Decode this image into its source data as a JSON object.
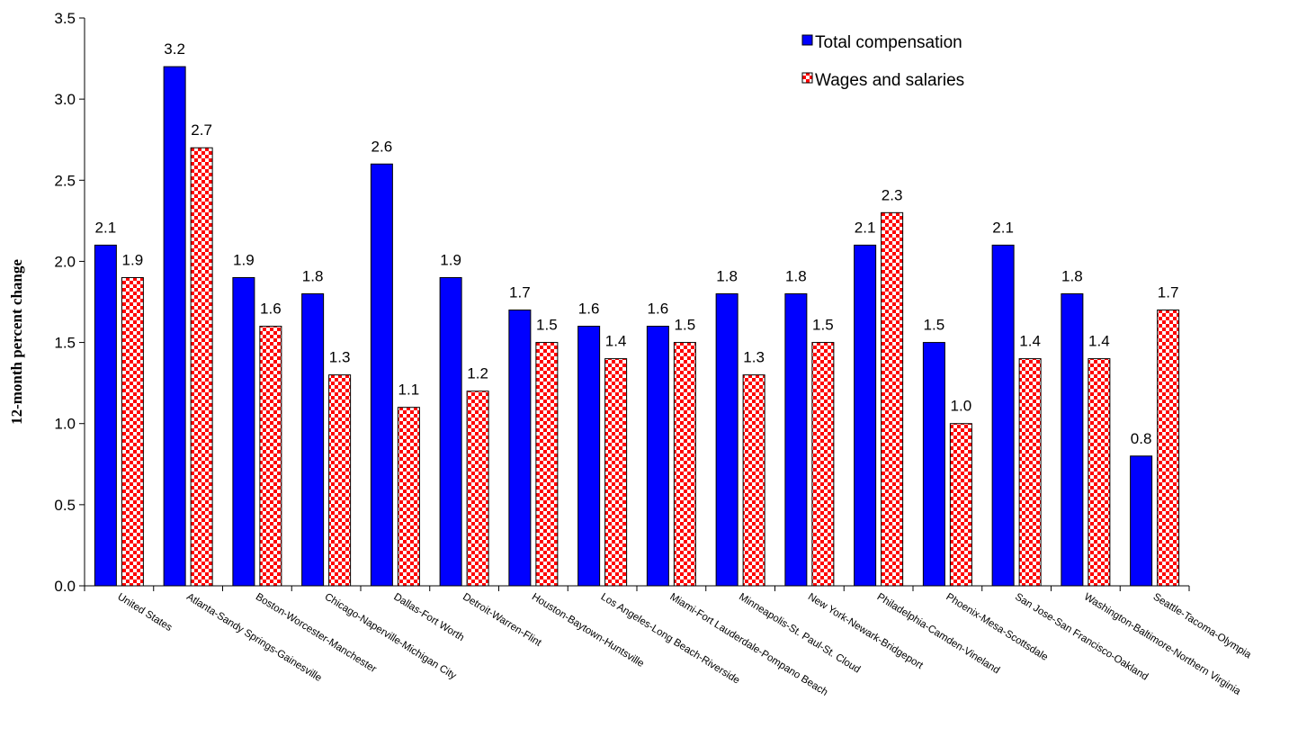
{
  "chart_data": {
    "type": "bar",
    "title": "",
    "xlabel": "",
    "ylabel": "12-month percent change",
    "ylim": [
      0,
      3.5
    ],
    "yticks": [
      "0.0",
      "0.5",
      "1.0",
      "1.5",
      "2.0",
      "2.5",
      "3.0",
      "3.5"
    ],
    "grid": false,
    "legend_position": "top-right",
    "categories": [
      "United States",
      "Atlanta-Sandy Springs-Gainesville",
      "Boston-Worcester-Manchester",
      "Chicago-Naperville-Michigan City",
      "Dallas-Fort Worth",
      "Detroit-Warren-Flint",
      "Houston-Baytown-Huntsville",
      "Los Angeles-Long Beach-Riverside",
      "Miami-Fort Lauderdale-Pompano Beach",
      "Minneapolis-St. Paul-St. Cloud",
      "New York-Newark-Bridgeport",
      "Philadelphia-Camden-Vineland",
      "Phoenix-Mesa-Scottsdale",
      "San Jose-San Francisco-Oakland",
      "Washington-Baltimore-Northern Virginia",
      "Seattle-Tacoma-Olympia"
    ],
    "series": [
      {
        "name": "Total compensation",
        "color": "#0000ff",
        "values": [
          2.1,
          3.2,
          1.9,
          1.8,
          2.6,
          1.9,
          1.7,
          1.6,
          1.6,
          1.8,
          1.8,
          2.1,
          1.5,
          2.1,
          1.8,
          0.8
        ]
      },
      {
        "name": "Wages and salaries",
        "color": "#ff0000",
        "pattern": "checkerboard red/white",
        "values": [
          1.9,
          2.7,
          1.6,
          1.3,
          1.1,
          1.2,
          1.5,
          1.4,
          1.5,
          1.3,
          1.5,
          2.3,
          1.0,
          1.4,
          1.4,
          1.7
        ]
      }
    ]
  }
}
